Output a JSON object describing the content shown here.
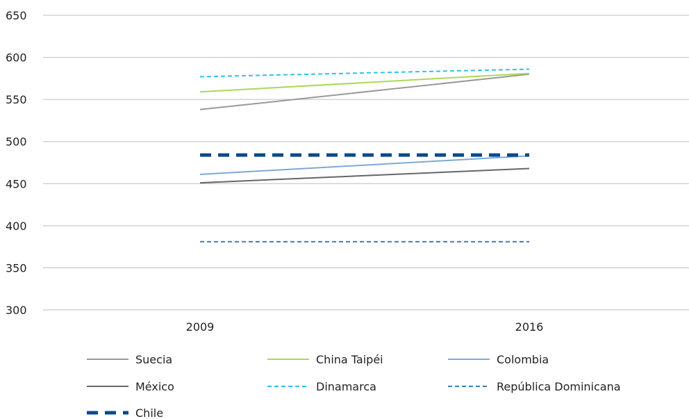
{
  "chart_data": {
    "type": "line",
    "title": "",
    "xlabel": "",
    "ylabel": "",
    "categories": [
      "2009",
      "2016"
    ],
    "ylim": [
      300,
      650
    ],
    "yticks": [
      "650",
      "600",
      "550",
      "500",
      "450",
      "400",
      "350",
      "300"
    ],
    "grid": true,
    "legend_position": "bottom",
    "series": [
      {
        "name": "Suecia",
        "values": [
          538,
          580
        ],
        "color": "#999999",
        "dash": "solid"
      },
      {
        "name": "China Taipéi",
        "values": [
          559,
          581
        ],
        "color": "#a8d957",
        "dash": "solid"
      },
      {
        "name": "Colombia",
        "values": [
          461,
          483
        ],
        "color": "#7fa8d4",
        "dash": "solid"
      },
      {
        "name": "México",
        "values": [
          451,
          468
        ],
        "color": "#666666",
        "dash": "solid"
      },
      {
        "name": "Dinamarca",
        "values": [
          577,
          586
        ],
        "color": "#2fc1e8",
        "dash": "dotted"
      },
      {
        "name": "República Dominicana",
        "values": [
          381,
          381
        ],
        "color": "#3f7bb8",
        "dash": "dotted"
      },
      {
        "name": "Chile",
        "values": [
          484,
          484
        ],
        "color": "#0b4a8a",
        "dash": "dashed-bold"
      }
    ]
  }
}
